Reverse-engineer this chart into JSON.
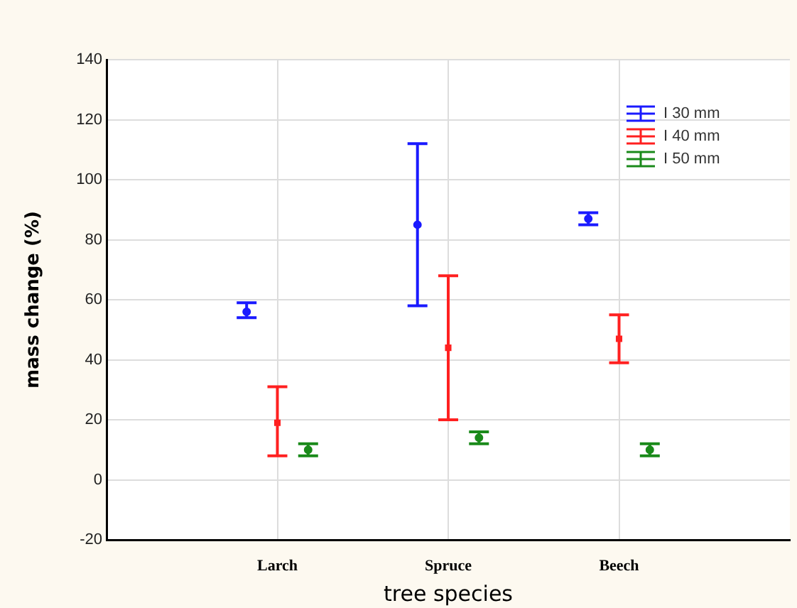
{
  "chart_data": {
    "type": "scatter",
    "xlabel": "tree species",
    "ylabel": "mass change (%)",
    "categories": [
      "Larch",
      "Spruce",
      "Beech"
    ],
    "ylim": [
      -20,
      140
    ],
    "yticks": [
      -20,
      0,
      20,
      40,
      60,
      80,
      100,
      120,
      140
    ],
    "grid": true,
    "legend": "top right",
    "series": [
      {
        "name": "I 30 mm",
        "color": "#1a1aff",
        "marker": "circle",
        "values": [
          56,
          85,
          87
        ],
        "errors": [
          [
            54,
            59
          ],
          [
            58,
            112
          ],
          [
            85,
            89
          ]
        ]
      },
      {
        "name": "I 40 mm",
        "color": "#ff2020",
        "marker": "square",
        "values": [
          19,
          44,
          47
        ],
        "errors": [
          [
            8,
            31
          ],
          [
            20,
            68
          ],
          [
            39,
            55
          ]
        ]
      },
      {
        "name": "I 50 mm",
        "color": "#1a8a1a",
        "marker": "circle",
        "values": [
          10,
          14,
          10
        ],
        "errors": [
          [
            8,
            12
          ],
          [
            12,
            16
          ],
          [
            8,
            12
          ]
        ]
      }
    ]
  }
}
